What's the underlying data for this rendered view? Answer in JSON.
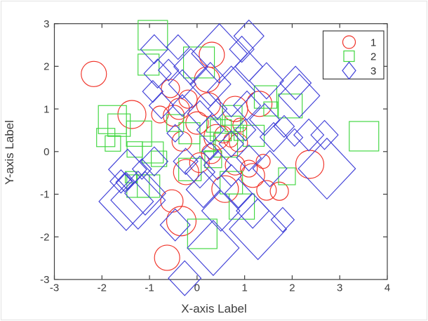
{
  "figure": {
    "xlabel": "X-axis Label",
    "ylabel": "Y-axis Label"
  },
  "colors": {
    "axis": "#3f3f3f",
    "background": "#ffffff",
    "series1": "#f03228",
    "series2": "#3fd63f",
    "series3": "#4040d8"
  },
  "chart_data": {
    "type": "scatter",
    "title": "",
    "xlabel": "X-axis Label",
    "ylabel": "Y-axis Label",
    "xlim": [
      -3,
      4
    ],
    "ylim": [
      -3,
      3
    ],
    "xticks": [
      -3,
      -2,
      -1,
      0,
      1,
      2,
      3,
      4
    ],
    "yticks": [
      -3,
      -2,
      -1,
      0,
      1,
      2,
      3
    ],
    "grid": false,
    "legend": {
      "position": "top-right",
      "entries": [
        {
          "label": "1",
          "marker": "circle",
          "color": "#f03228"
        },
        {
          "label": "2",
          "marker": "square",
          "color": "#3fd63f"
        },
        {
          "label": "3",
          "marker": "diamond",
          "color": "#4040d8"
        }
      ]
    },
    "series": [
      {
        "name": "1",
        "marker": "circle",
        "color": "#f03228",
        "points": [
          [
            -2.17,
            1.82,
            18
          ],
          [
            0.31,
            2.27,
            18
          ],
          [
            0.21,
            1.69,
            18
          ],
          [
            -0.56,
            1.48,
            13
          ],
          [
            -0.19,
            1.23,
            13
          ],
          [
            -0.38,
            1.0,
            15
          ],
          [
            0.24,
            1.1,
            17
          ],
          [
            1.31,
            1.12,
            18
          ],
          [
            0.8,
            1.0,
            18
          ],
          [
            -1.37,
            0.87,
            20
          ],
          [
            -0.78,
            0.87,
            12
          ],
          [
            -0.49,
            0.84,
            15
          ],
          [
            0.0,
            0.67,
            16
          ],
          [
            0.9,
            0.62,
            10
          ],
          [
            0.55,
            0.4,
            12
          ],
          [
            0.41,
            0.34,
            18
          ],
          [
            -0.32,
            0.24,
            14
          ],
          [
            0.87,
            0.21,
            13
          ],
          [
            0.71,
            0.27,
            10
          ],
          [
            0.3,
            -0.05,
            14
          ],
          [
            0.05,
            -0.26,
            14
          ],
          [
            -0.23,
            -0.48,
            18
          ],
          [
            0.8,
            -0.32,
            14
          ],
          [
            1.09,
            -0.4,
            12
          ],
          [
            1.39,
            -0.23,
            10
          ],
          [
            2.37,
            -0.3,
            20
          ],
          [
            -0.53,
            -1.16,
            16
          ],
          [
            0.59,
            -0.88,
            19
          ],
          [
            1.17,
            -0.56,
            17
          ],
          [
            1.46,
            -0.91,
            14
          ],
          [
            1.73,
            -0.93,
            13
          ],
          [
            -0.33,
            -1.63,
            21
          ],
          [
            -0.63,
            -2.49,
            18
          ]
        ]
      },
      {
        "name": "2",
        "marker": "square",
        "color": "#3fd63f",
        "points": [
          [
            -0.93,
            2.73,
            21
          ],
          [
            0.04,
            2.09,
            22
          ],
          [
            -1.02,
            2.04,
            15
          ],
          [
            1.44,
            1.28,
            16
          ],
          [
            1.96,
            1.07,
            17
          ],
          [
            -1.78,
            0.75,
            20
          ],
          [
            -1.64,
            0.62,
            16
          ],
          [
            -1.92,
            0.33,
            13
          ],
          [
            -1.22,
            0.42,
            18
          ],
          [
            1.55,
            1.0,
            10
          ],
          [
            0.74,
            0.85,
            14
          ],
          [
            0.35,
            0.62,
            10
          ],
          [
            0.22,
            0.18,
            11
          ],
          [
            -0.46,
            0.67,
            12
          ],
          [
            -0.16,
            0.43,
            15
          ],
          [
            0.5,
            0.5,
            15
          ],
          [
            0.75,
            0.65,
            11
          ],
          [
            1.19,
            0.37,
            15
          ],
          [
            0.91,
            0.41,
            9
          ],
          [
            -1.77,
            0.19,
            11
          ],
          [
            -1.31,
            0.05,
            11
          ],
          [
            -0.93,
            -0.02,
            15
          ],
          [
            -0.8,
            -0.17,
            11
          ],
          [
            -0.15,
            -0.42,
            16
          ],
          [
            0.34,
            -0.18,
            12
          ],
          [
            0.6,
            0.15,
            17
          ],
          [
            -1.39,
            -0.6,
            8
          ],
          [
            -1.24,
            -0.81,
            16
          ],
          [
            -1.02,
            -0.81,
            16
          ],
          [
            0.72,
            -0.73,
            16
          ],
          [
            0.94,
            -1.29,
            18
          ],
          [
            1.89,
            -0.58,
            12
          ],
          [
            0.11,
            -1.93,
            21
          ],
          [
            3.51,
            0.36,
            21
          ]
        ]
      },
      {
        "name": "3",
        "marker": "diamond",
        "color": "#4040d8",
        "points": [
          [
            0.47,
            2.3,
            41
          ],
          [
            1.09,
            2.71,
            22
          ],
          [
            -0.4,
            2.45,
            17
          ],
          [
            -0.9,
            2.4,
            20
          ],
          [
            0.94,
            2.4,
            18
          ],
          [
            -0.13,
            1.99,
            25
          ],
          [
            1.09,
            1.99,
            20
          ],
          [
            0.28,
            1.58,
            30
          ],
          [
            0.72,
            1.41,
            35
          ],
          [
            1.46,
            1.66,
            25
          ],
          [
            -0.31,
            1.58,
            20
          ],
          [
            -0.6,
            1.91,
            15
          ],
          [
            -0.83,
            1.83,
            20
          ],
          [
            -0.93,
            1.41,
            15
          ],
          [
            -0.75,
            1.08,
            18
          ],
          [
            2.15,
            1.31,
            30
          ],
          [
            2.07,
            1.61,
            23
          ],
          [
            1.05,
            1.08,
            20
          ],
          [
            1.42,
            0.75,
            22
          ],
          [
            1.61,
            0.34,
            20
          ],
          [
            1.02,
            0.51,
            15
          ],
          [
            0.72,
            0.18,
            18
          ],
          [
            -0.31,
            1.08,
            15
          ],
          [
            0.06,
            0.89,
            18
          ],
          [
            0.28,
            0.51,
            20
          ],
          [
            -0.46,
            0.43,
            12
          ],
          [
            0.43,
            1.0,
            14
          ],
          [
            1.83,
            0.59,
            15
          ],
          [
            2.05,
            0.33,
            12
          ],
          [
            2.35,
            0.39,
            22
          ],
          [
            2.68,
            0.39,
            20
          ],
          [
            2.73,
            -0.4,
            42
          ],
          [
            -0.24,
            -0.23,
            18
          ],
          [
            0.06,
            -0.48,
            22
          ],
          [
            0.43,
            -0.32,
            20
          ],
          [
            0.72,
            -0.56,
            15
          ],
          [
            1.09,
            -0.15,
            18
          ],
          [
            1.53,
            -0.4,
            25
          ],
          [
            0.28,
            0.01,
            12
          ],
          [
            -1.49,
            -1.17,
            40
          ],
          [
            -1.24,
            -1.14,
            40
          ],
          [
            -1.09,
            -0.98,
            30
          ],
          [
            -1.46,
            -0.42,
            28
          ],
          [
            -1.16,
            -0.41,
            14
          ],
          [
            -0.9,
            -0.23,
            20
          ],
          [
            -1.6,
            -0.7,
            16
          ],
          [
            -1.52,
            -0.72,
            13
          ],
          [
            -0.46,
            -1.72,
            22
          ],
          [
            0.13,
            -0.89,
            25
          ],
          [
            0.5,
            -1.39,
            28
          ],
          [
            0.87,
            -0.98,
            20
          ],
          [
            1.17,
            -1.39,
            24
          ],
          [
            1.28,
            -1.82,
            42
          ],
          [
            0.34,
            -2.26,
            38
          ],
          [
            -0.26,
            -2.97,
            24
          ],
          [
            1.8,
            -1.6,
            17
          ]
        ]
      }
    ]
  }
}
